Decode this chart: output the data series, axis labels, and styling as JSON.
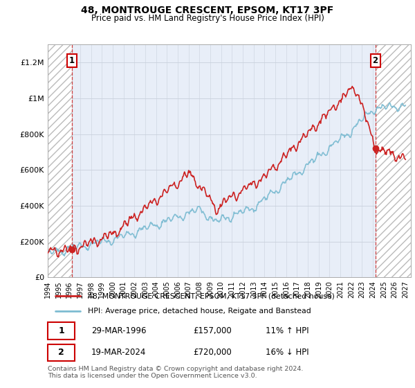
{
  "title": "48, MONTROUGE CRESCENT, EPSOM, KT17 3PF",
  "subtitle": "Price paid vs. HM Land Registry's House Price Index (HPI)",
  "ylabel_ticks": [
    "£0",
    "£200K",
    "£400K",
    "£600K",
    "£800K",
    "£1M",
    "£1.2M"
  ],
  "ytick_values": [
    0,
    200000,
    400000,
    600000,
    800000,
    1000000,
    1200000
  ],
  "ylim": [
    0,
    1300000
  ],
  "xlim_start": 1994.0,
  "xlim_end": 2027.5,
  "xtick_years": [
    1994,
    1995,
    1996,
    1997,
    1998,
    1999,
    2000,
    2001,
    2002,
    2003,
    2004,
    2005,
    2006,
    2007,
    2008,
    2009,
    2010,
    2011,
    2012,
    2013,
    2014,
    2015,
    2016,
    2017,
    2018,
    2019,
    2020,
    2021,
    2022,
    2023,
    2024,
    2025,
    2026,
    2027
  ],
  "hpi_color": "#7dbcd2",
  "price_color": "#cc2222",
  "marker_color": "#cc2222",
  "sale1_year": 1996.22,
  "sale1_price": 157000,
  "sale2_year": 2024.22,
  "sale2_price": 720000,
  "annotation1_label": "1",
  "annotation2_label": "2",
  "legend_line1": "48, MONTROUGE CRESCENT, EPSOM, KT17 3PF (detached house)",
  "legend_line2": "HPI: Average price, detached house, Reigate and Banstead",
  "table_row1": [
    "1",
    "29-MAR-1996",
    "£157,000",
    "11% ↑ HPI"
  ],
  "table_row2": [
    "2",
    "19-MAR-2024",
    "£720,000",
    "16% ↓ HPI"
  ],
  "footnote1": "Contains HM Land Registry data © Crown copyright and database right 2024.",
  "footnote2": "This data is licensed under the Open Government Licence v3.0.",
  "background_color": "#ffffff",
  "plot_bg_color": "#e8eef8"
}
